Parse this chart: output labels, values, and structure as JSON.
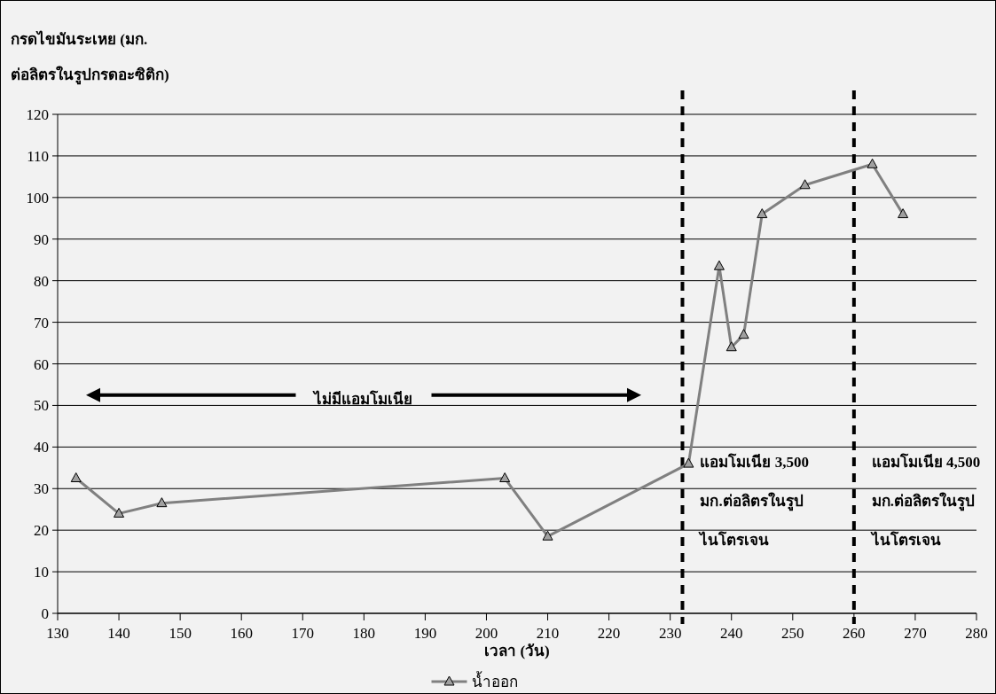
{
  "chart_data": {
    "type": "line",
    "ylabel": "กรดไขมันระเหย (มก.\nต่อลิตรในรูปกรดอะซิติก)",
    "xlabel": "เวลา (วัน)",
    "x": [
      133,
      140,
      147,
      203,
      210,
      233,
      238,
      240,
      242,
      245,
      252,
      263,
      268
    ],
    "series": [
      {
        "name": "น้ำออก",
        "color": "#808080",
        "values": [
          32.5,
          24,
          26.5,
          32.5,
          18.5,
          36,
          83.5,
          64,
          67,
          96,
          103,
          108,
          96
        ]
      }
    ],
    "xlim": [
      130,
      280
    ],
    "xticks": [
      130,
      140,
      150,
      160,
      170,
      180,
      190,
      200,
      210,
      220,
      230,
      240,
      250,
      260,
      270,
      280
    ],
    "ylim": [
      0,
      120
    ],
    "yticks": [
      0,
      10,
      20,
      30,
      40,
      50,
      60,
      70,
      80,
      90,
      100,
      110,
      120
    ],
    "grid": "y",
    "marker": "triangle",
    "line_style": "solid",
    "legend": "bottom",
    "ref_lines": [
      {
        "axis": "x",
        "value": 232,
        "label": "แอมโมเนีย 3,500\nมก.ต่อลิตรในรูป\nไนโตรเจน",
        "color": "#000000",
        "line_style": "dashed"
      },
      {
        "axis": "x",
        "value": 260,
        "label": "แอมโมเนีย 4,500\nมก.ต่อลิตรในรูป\nไนโตรเจน",
        "color": "#000000",
        "line_style": "dashed"
      }
    ],
    "annotations": [
      "ไม่มีแอมโมเนีย"
    ]
  }
}
